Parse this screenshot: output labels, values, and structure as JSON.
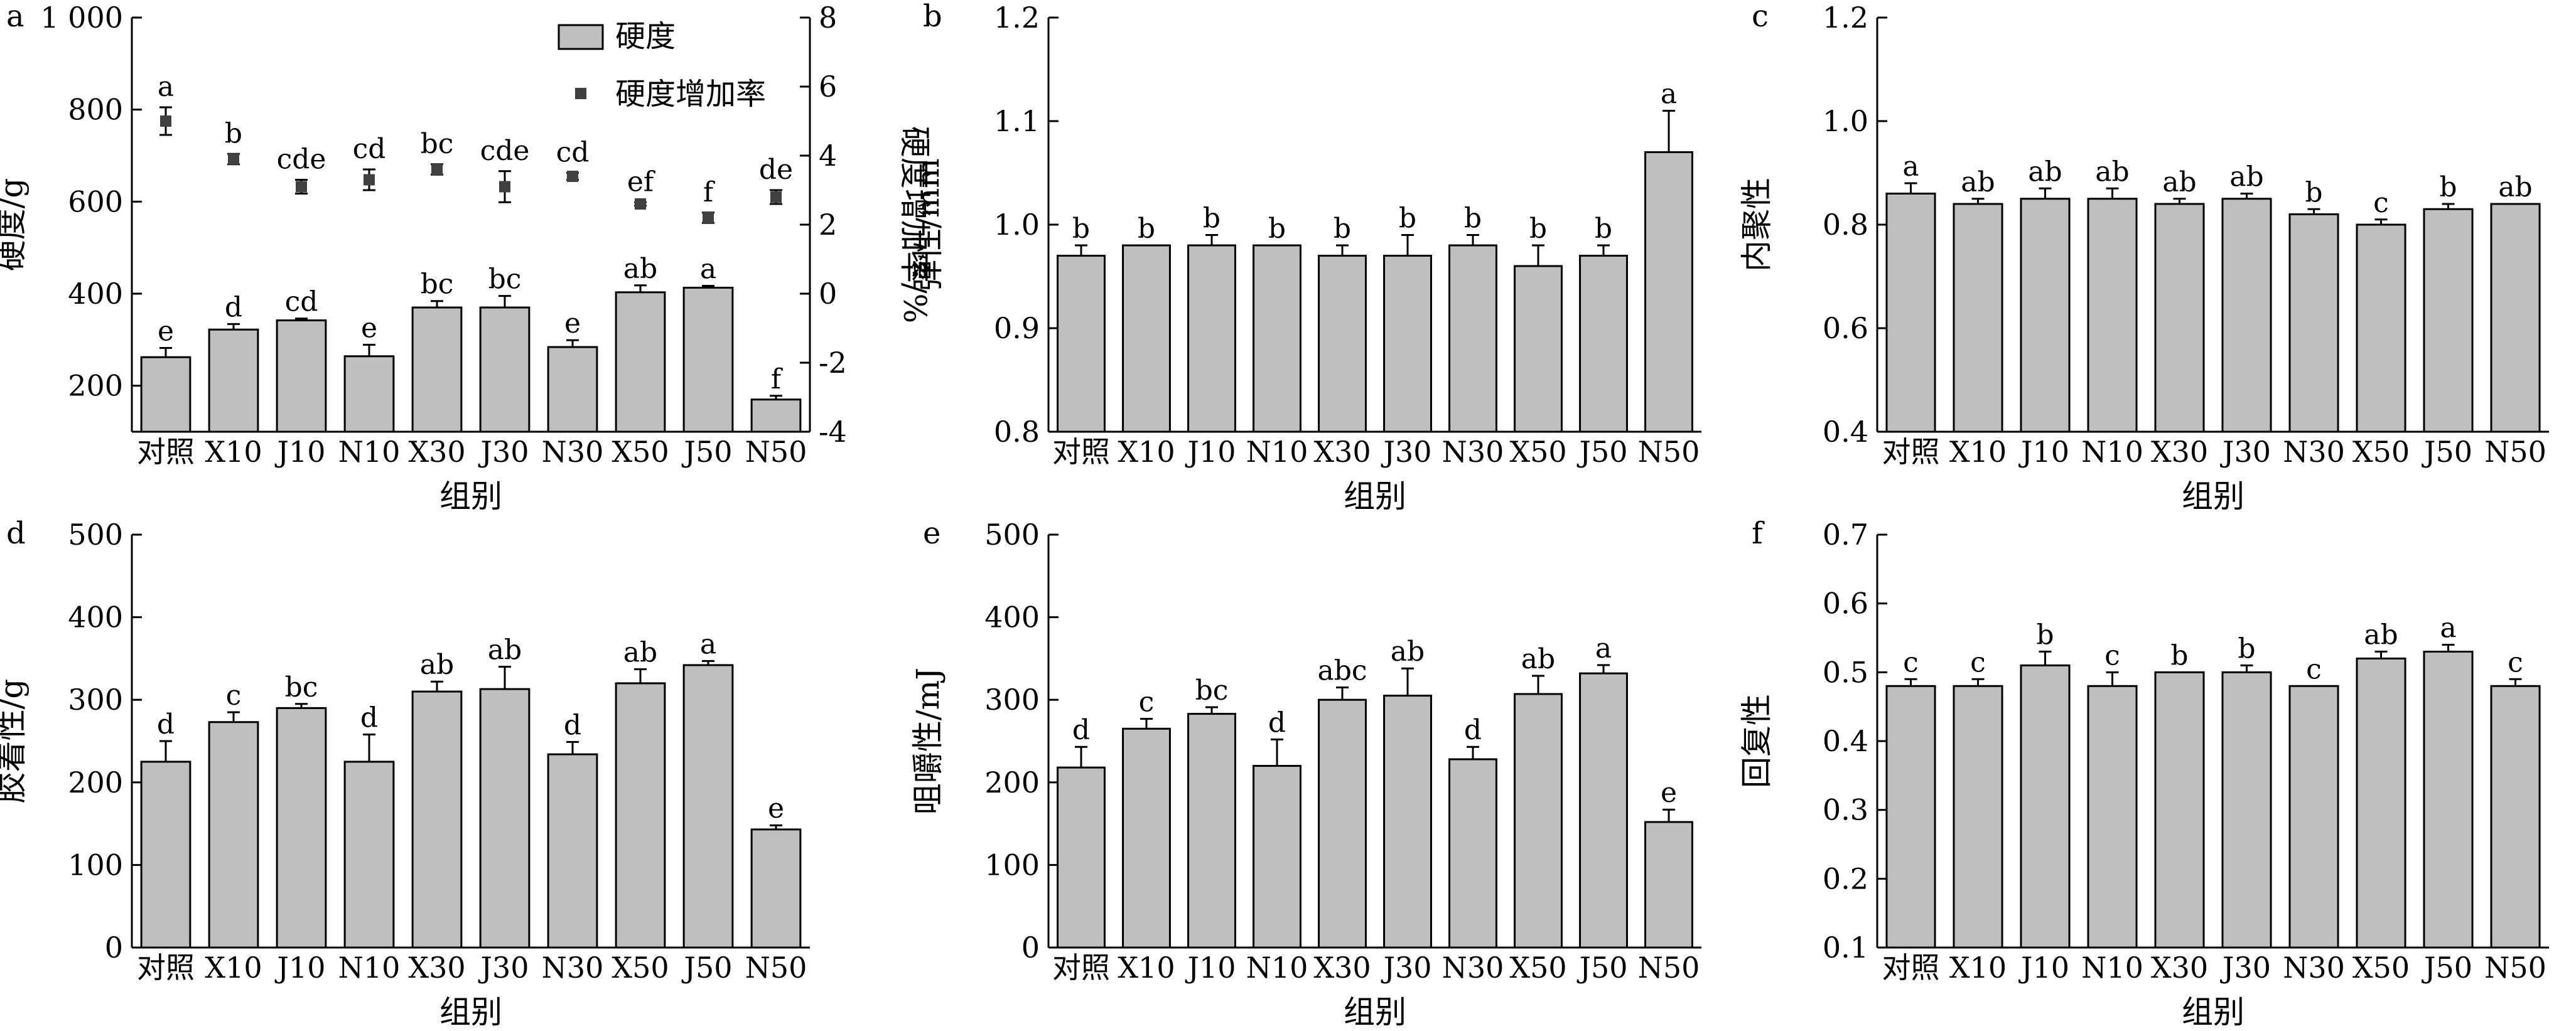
{
  "figure": {
    "group_axis_title": "组别",
    "categories": [
      "对照",
      "X10",
      "J10",
      "N10",
      "X30",
      "J30",
      "N30",
      "X50",
      "J50",
      "N50"
    ]
  },
  "chart_data": [
    {
      "id": "a",
      "type": "bar",
      "panel_label": "a",
      "ylabel": "硬度/g",
      "y2label": "硬度增加率/%",
      "xlabel": "组别",
      "ylim": [
        100,
        1000
      ],
      "yticks": [
        200,
        400,
        600,
        800,
        1000
      ],
      "ytick_labels": [
        "200",
        "400",
        "600",
        "800",
        "1 000"
      ],
      "y2lim": [
        -4,
        8
      ],
      "y2ticks": [
        -4,
        -2,
        0,
        2,
        4,
        6,
        8
      ],
      "categories": [
        "对照",
        "X10",
        "J10",
        "N10",
        "X30",
        "J30",
        "N30",
        "X50",
        "J50",
        "N50"
      ],
      "legend_position": "top-center",
      "series": [
        {
          "name": "硬度",
          "kind": "bar",
          "axis": "left",
          "values": [
            262,
            322,
            342,
            264,
            370,
            370,
            284,
            403,
            413,
            170
          ],
          "errors": [
            20,
            12,
            4,
            25,
            14,
            25,
            15,
            15,
            4,
            8
          ],
          "labels": [
            "e",
            "d",
            "cd",
            "e",
            "bc",
            "bc",
            "e",
            "ab",
            "a",
            "f"
          ]
        },
        {
          "name": "硬度增加率",
          "kind": "point",
          "axis": "right",
          "values": [
            5.0,
            3.9,
            3.1,
            3.3,
            3.6,
            3.1,
            3.4,
            2.6,
            2.2,
            2.8
          ],
          "errors": [
            0.4,
            0.15,
            0.2,
            0.3,
            0.15,
            0.45,
            0.1,
            0.05,
            0.15,
            0.2
          ],
          "labels": [
            "a",
            "b",
            "cde",
            "cd",
            "bc",
            "cde",
            "cd",
            "ef",
            "f",
            "de"
          ]
        }
      ]
    },
    {
      "id": "b",
      "type": "bar",
      "panel_label": "b",
      "ylabel": "弹性/mm",
      "xlabel": "组别",
      "ylim": [
        0.8,
        1.2
      ],
      "yticks": [
        0.8,
        0.9,
        1.0,
        1.1,
        1.2
      ],
      "ytick_labels": [
        "0.8",
        "0.9",
        "1.0",
        "1.1",
        "1.2"
      ],
      "categories": [
        "对照",
        "X10",
        "J10",
        "N10",
        "X30",
        "J30",
        "N30",
        "X50",
        "J50",
        "N50"
      ],
      "values": [
        0.97,
        0.98,
        0.98,
        0.98,
        0.97,
        0.97,
        0.98,
        0.96,
        0.97,
        1.07
      ],
      "errors": [
        0.01,
        0.0,
        0.01,
        0.0,
        0.01,
        0.02,
        0.01,
        0.02,
        0.01,
        0.04
      ],
      "labels": [
        "b",
        "b",
        "b",
        "b",
        "b",
        "b",
        "b",
        "b",
        "b",
        "a"
      ]
    },
    {
      "id": "c",
      "type": "bar",
      "panel_label": "c",
      "ylabel": "内聚性",
      "xlabel": "组别",
      "ylim": [
        0.4,
        1.2
      ],
      "yticks": [
        0.4,
        0.6,
        0.8,
        1.0,
        1.2
      ],
      "ytick_labels": [
        "0.4",
        "0.6",
        "0.8",
        "1.0",
        "1.2"
      ],
      "categories": [
        "对照",
        "X10",
        "J10",
        "N10",
        "X30",
        "J30",
        "N30",
        "X50",
        "J50",
        "N50"
      ],
      "values": [
        0.86,
        0.84,
        0.85,
        0.85,
        0.84,
        0.85,
        0.82,
        0.8,
        0.83,
        0.84
      ],
      "errors": [
        0.02,
        0.01,
        0.02,
        0.02,
        0.01,
        0.01,
        0.01,
        0.01,
        0.01,
        0.0
      ],
      "labels": [
        "a",
        "ab",
        "ab",
        "ab",
        "ab",
        "ab",
        "b",
        "c",
        "b",
        "ab"
      ]
    },
    {
      "id": "d",
      "type": "bar",
      "panel_label": "d",
      "ylabel": "胶着性/g",
      "xlabel": "组别",
      "ylim": [
        0,
        500
      ],
      "yticks": [
        0,
        100,
        200,
        300,
        400,
        500
      ],
      "ytick_labels": [
        "0",
        "100",
        "200",
        "300",
        "400",
        "500"
      ],
      "categories": [
        "对照",
        "X10",
        "J10",
        "N10",
        "X30",
        "J30",
        "N30",
        "X50",
        "J50",
        "N50"
      ],
      "values": [
        225,
        273,
        290,
        225,
        310,
        313,
        234,
        320,
        342,
        143
      ],
      "errors": [
        25,
        12,
        5,
        33,
        12,
        27,
        15,
        17,
        5,
        5
      ],
      "labels": [
        "d",
        "c",
        "bc",
        "d",
        "ab",
        "ab",
        "d",
        "ab",
        "a",
        "e"
      ]
    },
    {
      "id": "e",
      "type": "bar",
      "panel_label": "e",
      "ylabel": "咀嚼性/mJ",
      "xlabel": "组别",
      "ylim": [
        0,
        500
      ],
      "yticks": [
        0,
        100,
        200,
        300,
        400,
        500
      ],
      "ytick_labels": [
        "0",
        "100",
        "200",
        "300",
        "400",
        "500"
      ],
      "categories": [
        "对照",
        "X10",
        "J10",
        "N10",
        "X30",
        "J30",
        "N30",
        "X50",
        "J50",
        "N50"
      ],
      "values": [
        218,
        265,
        283,
        220,
        300,
        305,
        228,
        307,
        332,
        152
      ],
      "errors": [
        25,
        12,
        8,
        32,
        15,
        33,
        15,
        22,
        10,
        15
      ],
      "labels": [
        "d",
        "c",
        "bc",
        "d",
        "abc",
        "ab",
        "d",
        "ab",
        "a",
        "e"
      ]
    },
    {
      "id": "f",
      "type": "bar",
      "panel_label": "f",
      "ylabel": "回复性",
      "xlabel": "组别",
      "ylim": [
        0.1,
        0.7
      ],
      "yticks": [
        0.1,
        0.2,
        0.3,
        0.4,
        0.5,
        0.6,
        0.7
      ],
      "ytick_labels": [
        "0.1",
        "0.2",
        "0.3",
        "0.4",
        "0.5",
        "0.6",
        "0.7"
      ],
      "categories": [
        "对照",
        "X10",
        "J10",
        "N10",
        "X30",
        "J30",
        "N30",
        "X50",
        "J50",
        "N50"
      ],
      "values": [
        0.48,
        0.48,
        0.51,
        0.48,
        0.5,
        0.5,
        0.48,
        0.52,
        0.53,
        0.48
      ],
      "errors": [
        0.01,
        0.01,
        0.02,
        0.02,
        0.0,
        0.01,
        0.0,
        0.01,
        0.01,
        0.01
      ],
      "labels": [
        "c",
        "c",
        "b",
        "c",
        "b",
        "b",
        "c",
        "ab",
        "a",
        "c"
      ]
    }
  ]
}
